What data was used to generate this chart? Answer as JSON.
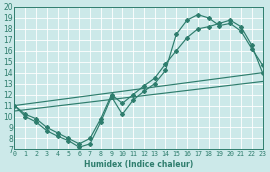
{
  "xlabel": "Humidex (Indice chaleur)",
  "xlim": [
    0,
    23
  ],
  "ylim": [
    7,
    20
  ],
  "xticks": [
    0,
    1,
    2,
    3,
    4,
    5,
    6,
    7,
    8,
    9,
    10,
    11,
    12,
    13,
    14,
    15,
    16,
    17,
    18,
    19,
    20,
    21,
    22,
    23
  ],
  "yticks": [
    7,
    8,
    9,
    10,
    11,
    12,
    13,
    14,
    15,
    16,
    17,
    18,
    19,
    20
  ],
  "bg_color": "#cce9e9",
  "grid_color": "#b0d8d8",
  "line_color": "#2e7d6d",
  "zigzag_x": [
    0,
    1,
    2,
    3,
    4,
    5,
    6,
    7,
    8,
    9,
    10,
    11,
    12,
    13,
    14,
    15,
    16,
    17,
    18,
    19,
    20,
    21,
    22,
    23
  ],
  "zigzag_y": [
    11,
    10,
    9.5,
    8.7,
    8.2,
    7.8,
    7.2,
    7.5,
    9.5,
    11.8,
    10.2,
    11.5,
    12.3,
    13.0,
    14.2,
    17.5,
    18.8,
    19.3,
    19.0,
    18.3,
    18.5,
    17.8,
    16.2,
    14.7
  ],
  "line2_x": [
    0,
    1,
    2,
    3,
    4,
    5,
    6,
    7,
    8,
    9,
    10,
    11,
    12,
    13,
    14,
    15,
    16,
    17,
    18,
    19,
    20,
    21,
    22,
    23
  ],
  "line2_y": [
    11,
    10.2,
    9.8,
    9.0,
    8.5,
    8.0,
    7.5,
    8.0,
    9.8,
    12.0,
    11.2,
    12.0,
    12.8,
    13.5,
    14.8,
    16.0,
    17.2,
    18.0,
    18.2,
    18.5,
    18.8,
    18.2,
    16.5,
    14.0
  ],
  "line3_x": [
    0,
    23
  ],
  "line3_y": [
    11,
    14.0
  ],
  "line4_x": [
    0,
    23
  ],
  "line4_y": [
    10.5,
    13.2
  ]
}
